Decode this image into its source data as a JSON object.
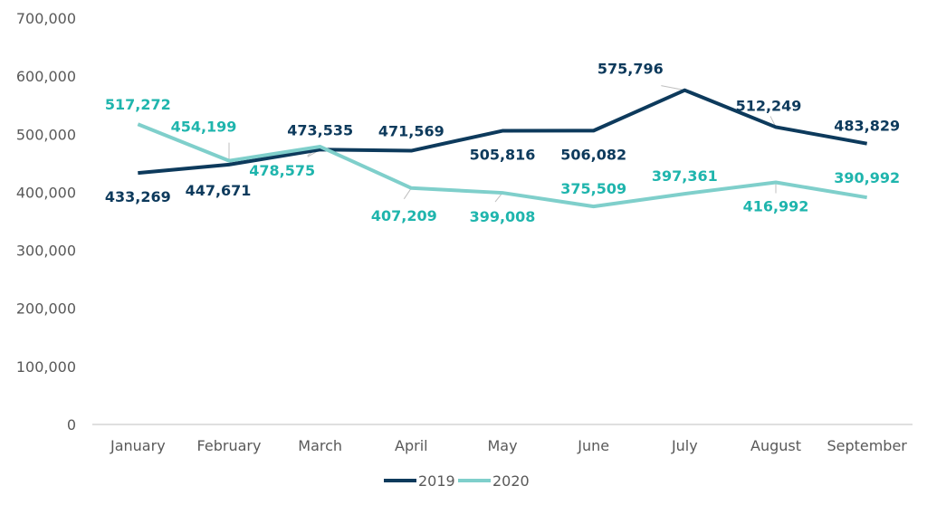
{
  "chart_data": {
    "type": "line",
    "categories": [
      "January",
      "February",
      "March",
      "April",
      "May",
      "June",
      "July",
      "August",
      "September"
    ],
    "y_ticks": [
      "0",
      "100,000",
      "200,000",
      "300,000",
      "400,000",
      "500,000",
      "600,000",
      "700,000"
    ],
    "ylim": [
      0,
      700000
    ],
    "grid": false,
    "legend_position": "bottom",
    "series": [
      {
        "name": "2019",
        "color": "#0d3a5c",
        "values": [
          433269,
          447671,
          473535,
          471569,
          505816,
          506082,
          575796,
          512249,
          483829
        ],
        "labels": [
          "433,269",
          "447,671",
          "473,535",
          "471,569",
          "505,816",
          "506,082",
          "575,796",
          "512,249",
          "483,829"
        ]
      },
      {
        "name": "2020",
        "color": "#7fcfcb",
        "label_color": "#1fb5ad",
        "values": [
          517272,
          454199,
          478575,
          407209,
          399008,
          375509,
          397361,
          416992,
          390992
        ],
        "labels": [
          "517,272",
          "454,199",
          "478,575",
          "407,209",
          "399,008",
          "375,509",
          "397,361",
          "416,992",
          "390,992"
        ]
      }
    ]
  }
}
